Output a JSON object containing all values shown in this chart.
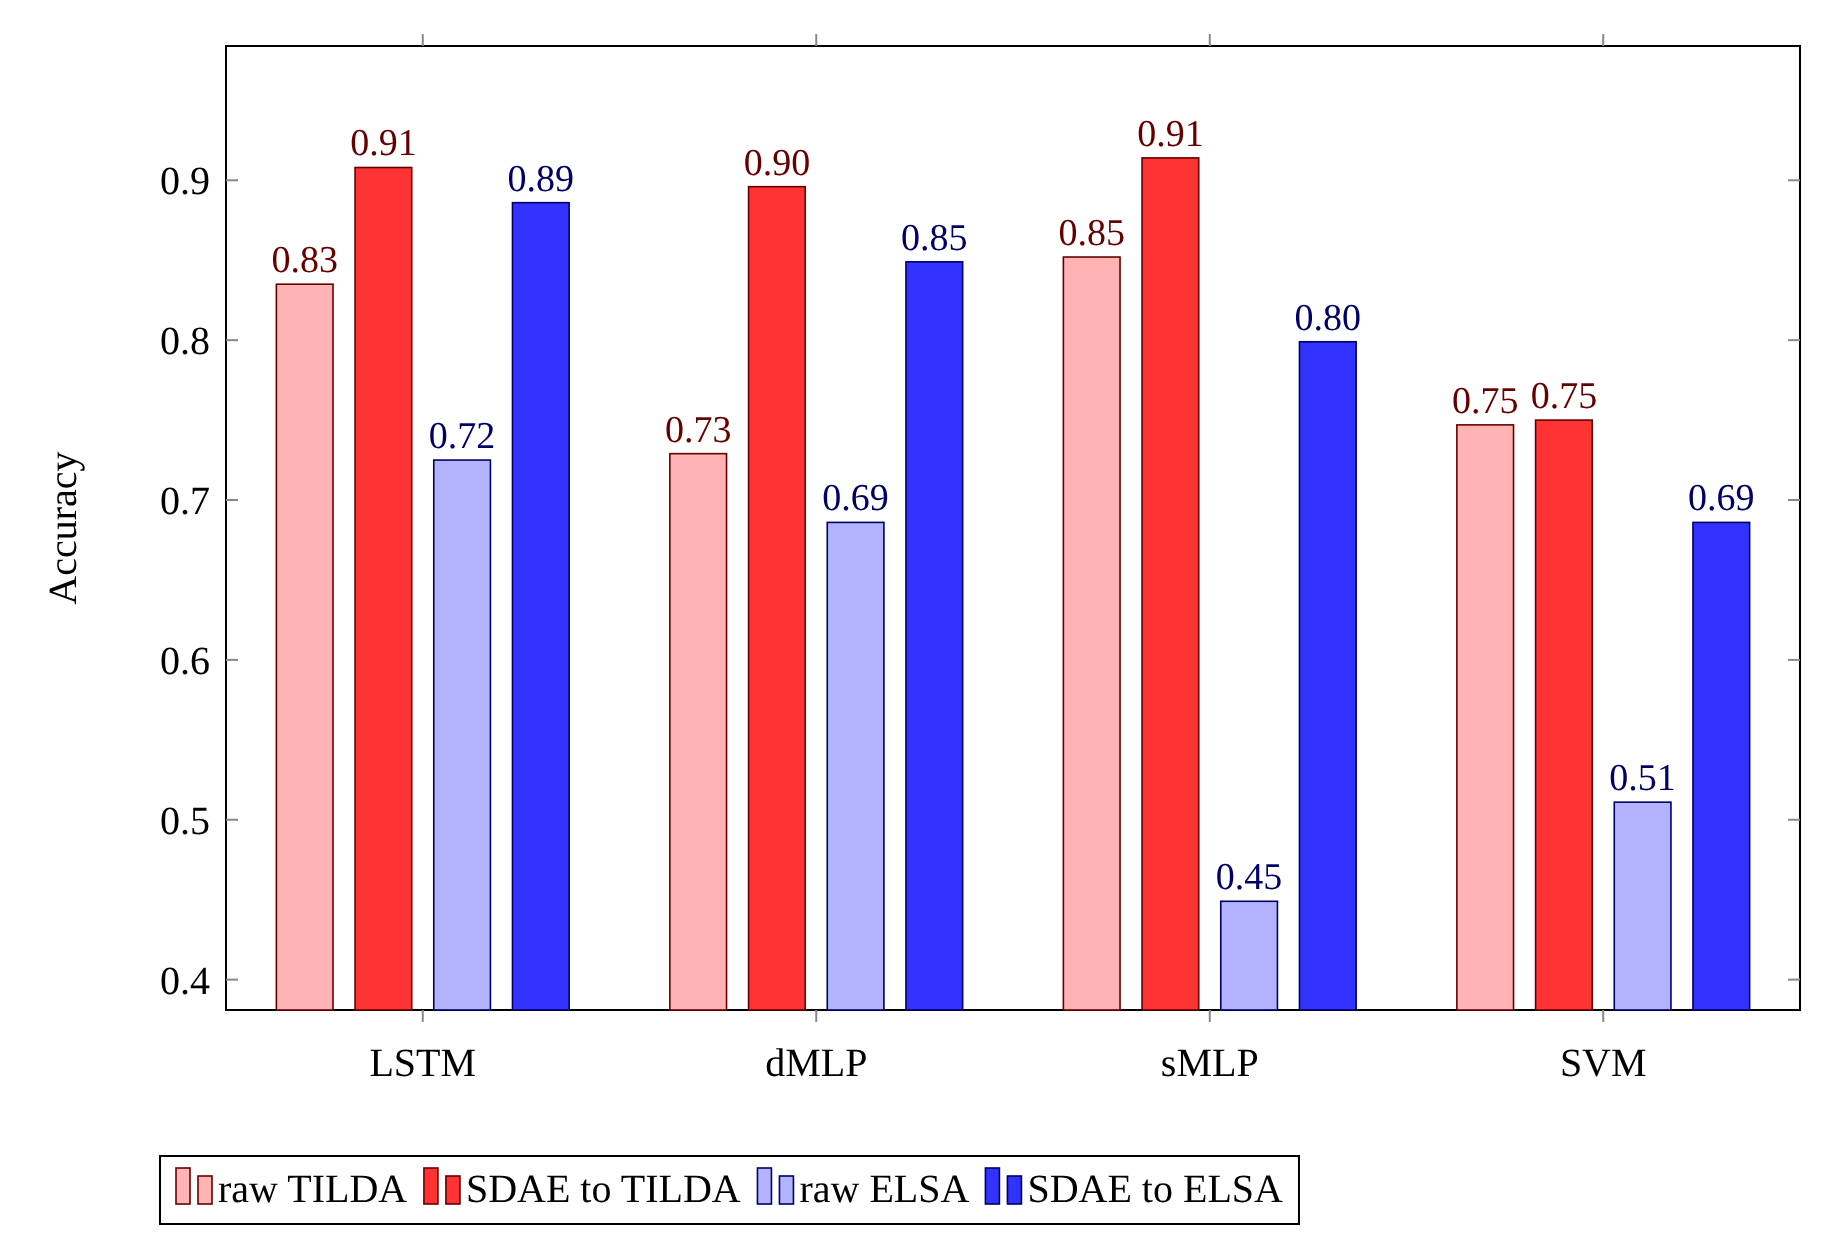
{
  "chart_data": {
    "type": "bar",
    "ylabel": "Accuracy",
    "categories": [
      "LSTM",
      "dMLP",
      "sMLP",
      "SVM"
    ],
    "series": [
      {
        "name": "raw TILDA",
        "color": "#ffb3b3",
        "values": [
          0.835,
          0.729,
          0.852,
          0.747
        ],
        "value_labels": [
          "0.83",
          "0.73",
          "0.85",
          "0.75"
        ]
      },
      {
        "name": "SDAE to TILDA",
        "color": "#ff3333",
        "values": [
          0.908,
          0.896,
          0.914,
          0.75
        ],
        "value_labels": [
          "0.91",
          "0.90",
          "0.91",
          "0.75"
        ]
      },
      {
        "name": "raw ELSA",
        "color": "#b3b3ff",
        "values": [
          0.725,
          0.686,
          0.449,
          0.511
        ],
        "value_labels": [
          "0.72",
          "0.69",
          "0.45",
          "0.51"
        ]
      },
      {
        "name": "SDAE to ELSA",
        "color": "#3333ff",
        "values": [
          0.886,
          0.849,
          0.799,
          0.686
        ],
        "value_labels": [
          "0.89",
          "0.85",
          "0.80",
          "0.69"
        ]
      }
    ],
    "ylim": [
      0.381,
      0.984
    ],
    "yticks": [
      {
        "value": 0.4,
        "label": "0.4"
      },
      {
        "value": 0.5,
        "label": "0.5"
      },
      {
        "value": 0.6,
        "label": "0.6"
      },
      {
        "value": 0.7,
        "label": "0.7"
      },
      {
        "value": 0.8,
        "label": "0.8"
      },
      {
        "value": 0.9,
        "label": "0.9"
      }
    ],
    "grid": false,
    "legend": "bottom"
  }
}
